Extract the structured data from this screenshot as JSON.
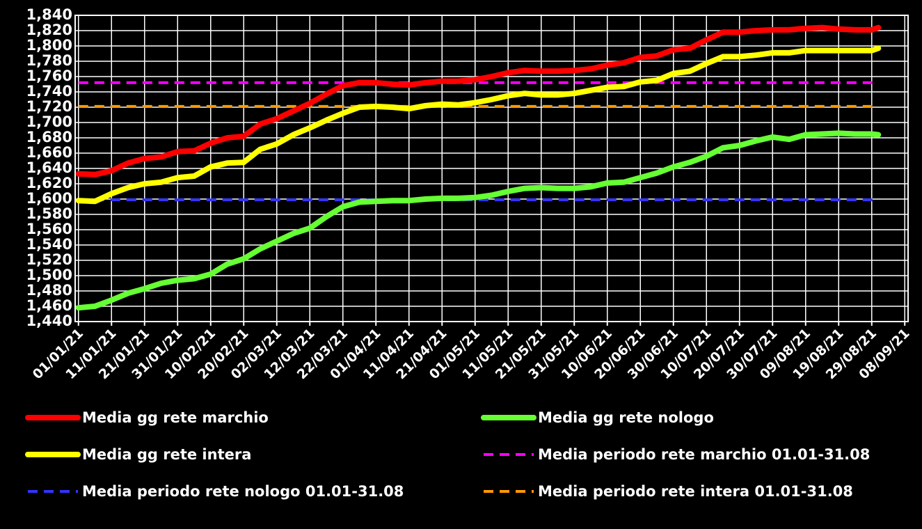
{
  "chart_data": {
    "type": "line",
    "x": [
      "2021-01-01",
      "2021-01-06",
      "2021-01-11",
      "2021-01-16",
      "2021-01-21",
      "2021-01-26",
      "2021-01-31",
      "2021-02-05",
      "2021-02-10",
      "2021-02-15",
      "2021-02-20",
      "2021-02-25",
      "2021-03-02",
      "2021-03-07",
      "2021-03-12",
      "2021-03-17",
      "2021-03-22",
      "2021-03-27",
      "2021-04-01",
      "2021-04-06",
      "2021-04-11",
      "2021-04-16",
      "2021-04-21",
      "2021-04-26",
      "2021-05-01",
      "2021-05-06",
      "2021-05-11",
      "2021-05-16",
      "2021-05-21",
      "2021-05-26",
      "2021-05-31",
      "2021-06-05",
      "2021-06-10",
      "2021-06-15",
      "2021-06-20",
      "2021-06-25",
      "2021-06-30",
      "2021-07-05",
      "2021-07-10",
      "2021-07-15",
      "2021-07-20",
      "2021-07-25",
      "2021-07-30",
      "2021-08-04",
      "2021-08-09",
      "2021-08-14",
      "2021-08-19",
      "2021-08-24",
      "2021-08-29",
      "2021-08-31"
    ],
    "series": [
      {
        "name": "Media gg rete marchio",
        "color": "#ff0000",
        "values": [
          1633,
          1632,
          1637,
          1647,
          1653,
          1655,
          1662,
          1663,
          1673,
          1680,
          1682,
          1698,
          1705,
          1715,
          1725,
          1737,
          1748,
          1752,
          1752,
          1750,
          1749,
          1752,
          1754,
          1754,
          1756,
          1760,
          1765,
          1768,
          1767,
          1767,
          1768,
          1770,
          1775,
          1778,
          1785,
          1787,
          1795,
          1797,
          1808,
          1818,
          1818,
          1820,
          1821,
          1821,
          1823,
          1824,
          1822,
          1821,
          1821,
          1824
        ]
      },
      {
        "name": "Media gg rete nologo",
        "color": "#66ff33",
        "values": [
          1458,
          1460,
          1468,
          1477,
          1483,
          1490,
          1494,
          1496,
          1502,
          1515,
          1522,
          1535,
          1545,
          1555,
          1562,
          1577,
          1590,
          1596,
          1597,
          1598,
          1598,
          1600,
          1601,
          1601,
          1602,
          1605,
          1610,
          1614,
          1615,
          1614,
          1614,
          1616,
          1621,
          1622,
          1628,
          1634,
          1642,
          1648,
          1656,
          1667,
          1670,
          1676,
          1681,
          1678,
          1684,
          1685,
          1686,
          1685,
          1685,
          1684
        ]
      },
      {
        "name": "Media gg rete intera",
        "color": "#ffff00",
        "values": [
          1598,
          1597,
          1607,
          1615,
          1620,
          1622,
          1628,
          1630,
          1642,
          1647,
          1648,
          1665,
          1672,
          1684,
          1693,
          1703,
          1712,
          1720,
          1721,
          1720,
          1718,
          1722,
          1724,
          1723,
          1726,
          1730,
          1735,
          1738,
          1736,
          1736,
          1738,
          1742,
          1746,
          1747,
          1753,
          1755,
          1764,
          1767,
          1777,
          1786,
          1786,
          1788,
          1791,
          1791,
          1794,
          1794,
          1794,
          1794,
          1794,
          1797
        ]
      },
      {
        "name": "Media periodo rete marchio 01.01-31.08",
        "color": "#ff00ff",
        "dashed": true,
        "x": [
          "2021-01-01",
          "2021-08-31"
        ],
        "values": [
          1752,
          1752
        ]
      },
      {
        "name": "Media periodo rete nologo 01.01-31.08",
        "color": "#3333ff",
        "dashed": true,
        "x": [
          "2021-01-01",
          "2021-08-31"
        ],
        "values": [
          1599,
          1599
        ]
      },
      {
        "name": "Media periodo rete intera 01.01-31.08",
        "color": "#ff9900",
        "dashed": true,
        "x": [
          "2021-01-01",
          "2021-08-31"
        ],
        "values": [
          1721,
          1721
        ]
      }
    ],
    "xlim": [
      "2020-12-31",
      "2021-09-09"
    ],
    "xticks": [
      {
        "value": "2021-01-01",
        "label": "01/01/21"
      },
      {
        "value": "2021-01-11",
        "label": "11/01/21"
      },
      {
        "value": "2021-01-21",
        "label": "21/01/21"
      },
      {
        "value": "2021-01-31",
        "label": "31/01/21"
      },
      {
        "value": "2021-02-10",
        "label": "10/02/21"
      },
      {
        "value": "2021-02-20",
        "label": "20/02/21"
      },
      {
        "value": "2021-03-02",
        "label": "02/03/21"
      },
      {
        "value": "2021-03-12",
        "label": "12/03/21"
      },
      {
        "value": "2021-03-22",
        "label": "22/03/21"
      },
      {
        "value": "2021-04-01",
        "label": "01/04/21"
      },
      {
        "value": "2021-04-11",
        "label": "11/04/21"
      },
      {
        "value": "2021-04-21",
        "label": "21/04/21"
      },
      {
        "value": "2021-05-01",
        "label": "01/05/21"
      },
      {
        "value": "2021-05-11",
        "label": "11/05/21"
      },
      {
        "value": "2021-05-21",
        "label": "21/05/21"
      },
      {
        "value": "2021-05-31",
        "label": "31/05/21"
      },
      {
        "value": "2021-06-10",
        "label": "10/06/21"
      },
      {
        "value": "2021-06-20",
        "label": "20/06/21"
      },
      {
        "value": "2021-06-30",
        "label": "30/06/21"
      },
      {
        "value": "2021-07-10",
        "label": "10/07/21"
      },
      {
        "value": "2021-07-20",
        "label": "20/07/21"
      },
      {
        "value": "2021-07-30",
        "label": "30/07/21"
      },
      {
        "value": "2021-08-09",
        "label": "09/08/21"
      },
      {
        "value": "2021-08-19",
        "label": "19/08/21"
      },
      {
        "value": "2021-08-29",
        "label": "29/08/21"
      },
      {
        "value": "2021-09-08",
        "label": "08/09/21"
      }
    ],
    "ylim": [
      1440,
      1840
    ],
    "yticks": [
      {
        "value": 1440,
        "label": "1,440"
      },
      {
        "value": 1460,
        "label": "1,460"
      },
      {
        "value": 1480,
        "label": "1,480"
      },
      {
        "value": 1500,
        "label": "1,500"
      },
      {
        "value": 1520,
        "label": "1,520"
      },
      {
        "value": 1540,
        "label": "1,540"
      },
      {
        "value": 1560,
        "label": "1,560"
      },
      {
        "value": 1580,
        "label": "1,580"
      },
      {
        "value": 1600,
        "label": "1,600"
      },
      {
        "value": 1620,
        "label": "1,620"
      },
      {
        "value": 1640,
        "label": "1,640"
      },
      {
        "value": 1660,
        "label": "1,660"
      },
      {
        "value": 1680,
        "label": "1,680"
      },
      {
        "value": 1700,
        "label": "1,700"
      },
      {
        "value": 1720,
        "label": "1,720"
      },
      {
        "value": 1740,
        "label": "1,740"
      },
      {
        "value": 1760,
        "label": "1,760"
      },
      {
        "value": 1780,
        "label": "1,780"
      },
      {
        "value": 1800,
        "label": "1,800"
      },
      {
        "value": 1820,
        "label": "1,820"
      },
      {
        "value": 1840,
        "label": "1,840"
      }
    ],
    "grid": true,
    "legend": "bottom"
  }
}
